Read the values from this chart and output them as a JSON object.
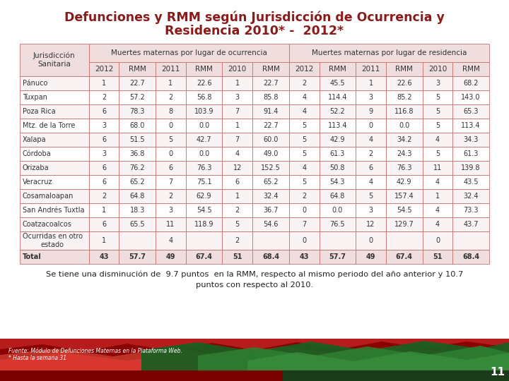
{
  "title_line1": "Defunciones y RMM según Jurisdicción de Ocurrencia y",
  "title_line2": "Residencia 2010* -  2012*",
  "title_color": "#8b1a1a",
  "header1": "Muertes maternas por lugar de ocurrencia",
  "header2": "Muertes maternas por lugar de residencia",
  "rows": [
    [
      "Pánuco",
      "1",
      "22.7",
      "1",
      "22.6",
      "1",
      "22.7",
      "2",
      "45.5",
      "1",
      "22.6",
      "3",
      "68.2"
    ],
    [
      "Tuxpan",
      "2",
      "57.2",
      "2",
      "56.8",
      "3",
      "85.8",
      "4",
      "114.4",
      "3",
      "85.2",
      "5",
      "143.0"
    ],
    [
      "Poza Rica",
      "6",
      "78.3",
      "8",
      "103.9",
      "7",
      "91.4",
      "4",
      "52.2",
      "9",
      "116.8",
      "5",
      "65.3"
    ],
    [
      "Mtz. de la Torre",
      "3",
      "68.0",
      "0",
      "0.0",
      "1",
      "22.7",
      "5",
      "113.4",
      "0",
      "0.0",
      "5",
      "113.4"
    ],
    [
      "Xalapa",
      "6",
      "51.5",
      "5",
      "42.7",
      "7",
      "60.0",
      "5",
      "42.9",
      "4",
      "34.2",
      "4",
      "34.3"
    ],
    [
      "Córdoba",
      "3",
      "36.8",
      "0",
      "0.0",
      "4",
      "49.0",
      "5",
      "61.3",
      "2",
      "24.3",
      "5",
      "61.3"
    ],
    [
      "Orizaba",
      "6",
      "76.2",
      "6",
      "76.3",
      "12",
      "152.5",
      "4",
      "50.8",
      "6",
      "76.3",
      "11",
      "139.8"
    ],
    [
      "Veracruz",
      "6",
      "65.2",
      "7",
      "75.1",
      "6",
      "65.2",
      "5",
      "54.3",
      "4",
      "42.9",
      "4",
      "43.5"
    ],
    [
      "Cosamaloapan",
      "2",
      "64.8",
      "2",
      "62.9",
      "1",
      "32.4",
      "2",
      "64.8",
      "5",
      "157.4",
      "1",
      "32.4"
    ],
    [
      "San Andrés Tuxtla",
      "1",
      "18.3",
      "3",
      "54.5",
      "2",
      "36.7",
      "0",
      "0.0",
      "3",
      "54.5",
      "4",
      "73.3"
    ],
    [
      "Coatzacoalcos",
      "6",
      "65.5",
      "11",
      "118.9",
      "5",
      "54.6",
      "7",
      "76.5",
      "12",
      "129.7",
      "4",
      "43.7"
    ],
    [
      "Ocurridas en otro\nestado",
      "1",
      "",
      "4",
      "",
      "2",
      "",
      "0",
      "",
      "0",
      "",
      "0",
      ""
    ],
    [
      "Total",
      "43",
      "57.7",
      "49",
      "67.4",
      "51",
      "68.4",
      "43",
      "57.7",
      "49",
      "67.4",
      "51",
      "68.4"
    ]
  ],
  "footnote": "Se tiene una disminución de  9.7 puntos  en la RMM, respecto al mismo periodo del año anterior y 10.7\npuntos con respecto al 2010.",
  "source_line1": "Fuente: Módulo de Defunciones Maternas en la Plataforma Web.",
  "source_line2": "* Hasta la semana 31",
  "page_number": "11",
  "bg_color": "#ffffff",
  "header_bg": "#f0dede",
  "row_bg_even": "#faf3f3",
  "row_bg_odd": "#ffffff",
  "total_bg": "#f0dede",
  "border_color": "#c87070",
  "text_color": "#333333"
}
